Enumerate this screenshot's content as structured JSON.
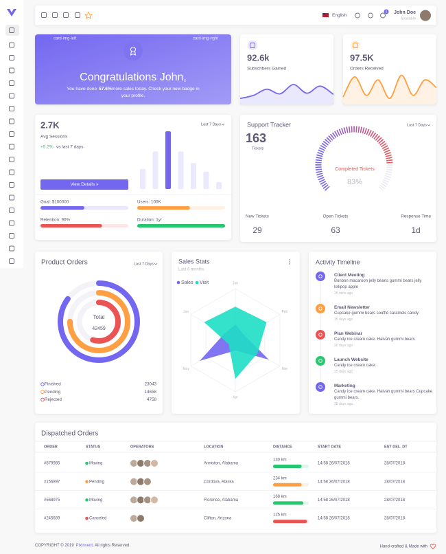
{
  "topbar": {
    "language": "English",
    "notifications": "6",
    "user_name": "John Doe",
    "user_status": "Available"
  },
  "congrats": {
    "left_label": "card-img-left",
    "right_label": "card-img-right",
    "title": "Congratulations John,",
    "text_before": "You have done",
    "highlight": "57.6%",
    "text_after": "more sales today. Check your new badge in your profile."
  },
  "subscribers": {
    "value": "92.6k",
    "label": "Subscribers Gained",
    "color": "#7367f0",
    "trend": [
      15,
      25,
      45,
      30,
      60,
      32,
      55,
      28
    ]
  },
  "orders": {
    "value": "97.5K",
    "label": "Orders Received",
    "color": "#ff9f43",
    "trend": [
      20,
      85,
      25,
      75,
      15,
      90,
      25,
      75,
      50
    ]
  },
  "sessions": {
    "value": "2.7K",
    "label": "Avg Sessions",
    "change": "+5.2%",
    "change_text": "vs last 7 days",
    "period": "Last 7 Days",
    "button": "View Details »",
    "bars": {
      "values": [
        35,
        65,
        100,
        65,
        45,
        30,
        12
      ],
      "colors": [
        "#ebe9fd",
        "#ebe9fd",
        "#7367f0",
        "#ebe9fd",
        "#ebe9fd",
        "#ebe9fd",
        "#ebe9fd"
      ]
    },
    "metrics": [
      {
        "label": "Goal: $100000",
        "progress": 50,
        "color": "#7367f0"
      },
      {
        "label": "Users: 100K",
        "progress": 60,
        "color": "#ff9f43"
      },
      {
        "label": "Retention: 90%",
        "progress": 70,
        "color": "#ea5455"
      },
      {
        "label": "Duration: 1yr",
        "progress": 100,
        "color": "#28c76f"
      }
    ]
  },
  "support": {
    "title": "Support Tracker",
    "period": "Last 7 Days",
    "count": "163",
    "count_label": "Tickets",
    "gauge_label": "Completed Tickets",
    "gauge": {
      "value": 83,
      "label": "83%"
    },
    "stats": [
      {
        "label": "New Tickets",
        "value": "29"
      },
      {
        "label": "Open Tickets",
        "value": "63"
      },
      {
        "label": "Response Time",
        "value": "1d"
      }
    ]
  },
  "product_orders": {
    "title": "Product Orders",
    "period": "Last 7 Days",
    "total_label": "Total",
    "total": "42459",
    "legend": [
      {
        "name": "Finished",
        "value": "23043",
        "color": "#7367f0",
        "ring": 85
      },
      {
        "name": "Pending",
        "value": "14658",
        "color": "#ff9f43",
        "ring": 75
      },
      {
        "name": "Rejected",
        "value": "4758",
        "color": "#ea5455",
        "ring": 55
      }
    ]
  },
  "sales_stats": {
    "title": "Sales Stats",
    "subtitle": "Last 6 months",
    "axes": [
      "Jan",
      "Feb",
      "Mar",
      "Apr",
      "May",
      "Jun"
    ],
    "rlim": [
      0,
      100
    ],
    "series": [
      {
        "name": "Sales",
        "color": "#7367f0",
        "values": [
          30,
          20,
          75,
          20,
          80,
          25
        ]
      },
      {
        "name": "Visit",
        "color": "#1edec5",
        "values": [
          65,
          70,
          50,
          75,
          15,
          70
        ]
      }
    ]
  },
  "timeline": {
    "title": "Activity Timeline",
    "items": [
      {
        "title": "Client Meeting",
        "text": "Bonbon macaroon jelly beans gummi bears jelly lollipop apple",
        "time": "25 mins ago",
        "color": "#7367f0"
      },
      {
        "title": "Email Newsletter",
        "text": "Cupcake gummi bears soufflé caramels candy",
        "time": "15 days ago",
        "color": "#ff9f43"
      },
      {
        "title": "Plan Webinar",
        "text": "Candy ice cream cake. Halvah gummi bears",
        "time": "20 days ago",
        "color": "#ea5455"
      },
      {
        "title": "Launch Website",
        "text": "Candy ice cream cake.",
        "time": "25 days ago",
        "color": "#28c76f"
      },
      {
        "title": "Marketing",
        "text": "Candy ice cream cake. Halvah gummi bears Cupcake gummi bears.",
        "time": "28 days ago",
        "color": "#7367f0"
      }
    ]
  },
  "dispatched": {
    "title": "Dispatched Orders",
    "columns": [
      "ORDER",
      "STATUS",
      "OPERATORS",
      "LOCATION",
      "DISTANCE",
      "START DATE",
      "EST DEL. DT"
    ],
    "rows": [
      {
        "order": "#879985",
        "status": "Moving",
        "status_color": "#28c76f",
        "operators": 4,
        "location": "Anniston, Alabama",
        "distance": "130 km",
        "progress": 80,
        "progress_color": "#28c76f",
        "start": "14:58 26/07/2018",
        "est": "28/07/2018"
      },
      {
        "order": "#156897",
        "status": "Pending",
        "status_color": "#ff9f43",
        "operators": 3,
        "location": "Cordova, Alaska",
        "distance": "234 km",
        "progress": 80,
        "progress_color": "#ff9f43",
        "start": "14:58 26/07/2018",
        "est": "28/07/2018"
      },
      {
        "order": "#568975",
        "status": "Moving",
        "status_color": "#28c76f",
        "operators": 4,
        "location": "Florence, Alabama",
        "distance": "168 km",
        "progress": 85,
        "progress_color": "#28c76f",
        "start": "14:58 26/07/2018",
        "est": "28/07/2018"
      },
      {
        "order": "#245689",
        "status": "Canceled",
        "status_color": "#ea5455",
        "operators": 2,
        "location": "Clifton, Arizona",
        "distance": "125 km",
        "progress": 95,
        "progress_color": "#ea5455",
        "start": "14:58 26/07/2018",
        "est": "28/07/2018"
      }
    ]
  },
  "footer": {
    "copyright": "COPYRIGHT © 2019",
    "brand": "Pixinvent",
    "rights": ", All rights Reserved",
    "credit": "Hand-crafted & Made with"
  }
}
